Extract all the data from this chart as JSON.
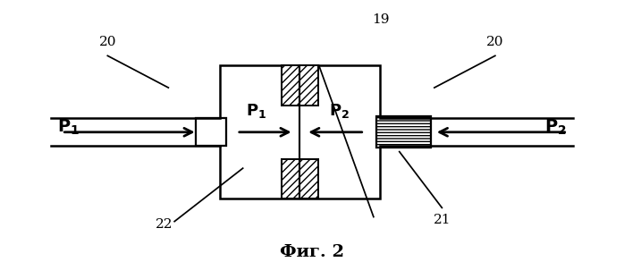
{
  "fig_width": 6.98,
  "fig_height": 2.93,
  "dpi": 100,
  "bg_color": "#ffffff",
  "line_color": "#000000",
  "caption": "Фиг. 2",
  "lw": 1.8
}
